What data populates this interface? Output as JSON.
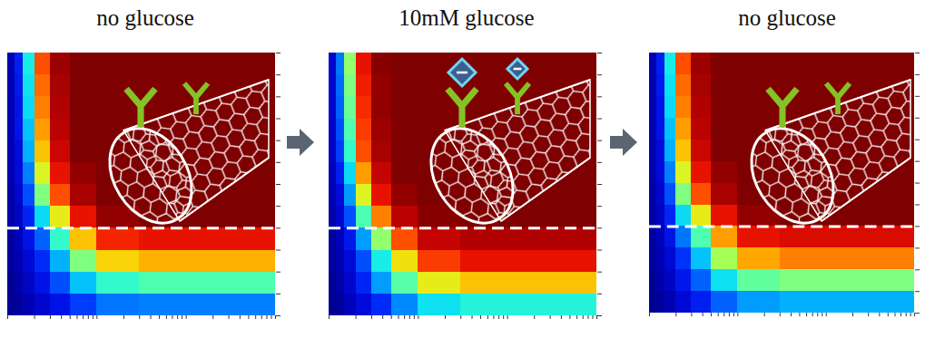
{
  "chart_data": [
    {
      "type": "heatmap",
      "title": "no glucose",
      "x_bins": [
        1,
        1.2,
        1.5,
        2,
        3,
        5,
        10,
        30,
        100,
        300,
        1000
      ],
      "y_bins": [
        0,
        1,
        2,
        3,
        4,
        5,
        6,
        7,
        8,
        9,
        10,
        11,
        12
      ],
      "cells": [
        [
          0.02,
          0.03,
          0.05,
          0.08,
          0.12,
          0.18,
          0.24,
          0.25,
          0.25,
          0.25
        ],
        [
          0.02,
          0.04,
          0.07,
          0.12,
          0.2,
          0.32,
          0.42,
          0.45,
          0.45,
          0.45
        ],
        [
          0.03,
          0.05,
          0.09,
          0.16,
          0.3,
          0.5,
          0.66,
          0.7,
          0.7,
          0.7
        ],
        [
          0.03,
          0.06,
          0.12,
          0.22,
          0.42,
          0.68,
          0.85,
          0.88,
          0.88,
          0.88
        ],
        [
          0.04,
          0.07,
          0.15,
          0.35,
          0.62,
          0.88,
          0.98,
          1,
          1,
          1
        ],
        [
          0.04,
          0.08,
          0.2,
          0.5,
          0.8,
          0.96,
          1,
          1,
          1,
          1
        ],
        [
          0.05,
          0.1,
          0.25,
          0.6,
          0.88,
          0.98,
          1,
          1,
          1,
          1
        ],
        [
          0.05,
          0.1,
          0.3,
          0.68,
          0.92,
          1,
          1,
          1,
          1,
          1
        ],
        [
          0.05,
          0.12,
          0.32,
          0.72,
          0.94,
          1,
          1,
          1,
          1,
          1
        ],
        [
          0.05,
          0.12,
          0.35,
          0.75,
          0.95,
          1,
          1,
          1,
          1,
          1
        ],
        [
          0.05,
          0.13,
          0.36,
          0.77,
          0.96,
          1,
          1,
          1,
          1,
          1
        ],
        [
          0.05,
          0.14,
          0.38,
          0.8,
          0.97,
          1,
          1,
          1,
          1,
          1
        ]
      ],
      "zlim": [
        0,
        1
      ],
      "xlim": [
        1,
        1000
      ],
      "ylim": [
        0,
        12
      ],
      "xticks": [
        1,
        2,
        3,
        4,
        5,
        6,
        7,
        8,
        9,
        10,
        20,
        30,
        40,
        50,
        60,
        70,
        80,
        90,
        100,
        200,
        300,
        400,
        500,
        600,
        700,
        800,
        900,
        1000
      ],
      "yticks": [
        0,
        1,
        2,
        3,
        4,
        5,
        6,
        7,
        8,
        9,
        10,
        11,
        12
      ],
      "log": "x",
      "tick_labels": false,
      "reference_line": 4,
      "line_style": "dashed"
    },
    {
      "type": "heatmap",
      "title": "10mM glucose",
      "x_bins": [
        1,
        1.2,
        1.5,
        2,
        3,
        5,
        10,
        30,
        100,
        300,
        1000
      ],
      "y_bins": [
        0,
        1,
        2,
        3,
        4,
        5,
        6,
        7,
        8,
        9,
        10,
        11,
        12
      ],
      "cells": [
        [
          0.02,
          0.03,
          0.06,
          0.1,
          0.16,
          0.26,
          0.36,
          0.4,
          0.4,
          0.4
        ],
        [
          0.02,
          0.04,
          0.08,
          0.15,
          0.28,
          0.46,
          0.62,
          0.68,
          0.68,
          0.68
        ],
        [
          0.03,
          0.05,
          0.1,
          0.2,
          0.38,
          0.64,
          0.82,
          0.88,
          0.88,
          0.88
        ],
        [
          0.03,
          0.06,
          0.13,
          0.28,
          0.52,
          0.8,
          0.93,
          0.95,
          0.95,
          0.95
        ],
        [
          0.04,
          0.08,
          0.2,
          0.45,
          0.75,
          0.94,
          0.99,
          1,
          1,
          1
        ],
        [
          0.05,
          0.1,
          0.28,
          0.6,
          0.88,
          0.98,
          1,
          1,
          1,
          1
        ],
        [
          0.06,
          0.14,
          0.35,
          0.72,
          0.93,
          1,
          1,
          1,
          1,
          1
        ],
        [
          0.07,
          0.18,
          0.42,
          0.8,
          0.96,
          1,
          1,
          1,
          1,
          1
        ],
        [
          0.07,
          0.2,
          0.45,
          0.82,
          0.97,
          1,
          1,
          1,
          1,
          1
        ],
        [
          0.08,
          0.22,
          0.48,
          0.84,
          0.98,
          1,
          1,
          1,
          1,
          1
        ],
        [
          0.08,
          0.23,
          0.5,
          0.86,
          0.98,
          1,
          1,
          1,
          1,
          1
        ],
        [
          0.08,
          0.24,
          0.52,
          0.88,
          0.99,
          1,
          1,
          1,
          1,
          1
        ]
      ],
      "zlim": [
        0,
        1
      ],
      "xlim": [
        1,
        1000
      ],
      "ylim": [
        0,
        12
      ],
      "xticks": [
        1,
        2,
        3,
        4,
        5,
        6,
        7,
        8,
        9,
        10,
        20,
        30,
        40,
        50,
        60,
        70,
        80,
        90,
        100,
        200,
        300,
        400,
        500,
        600,
        700,
        800,
        900,
        1000
      ],
      "yticks": [
        0,
        1,
        2,
        3,
        4,
        5,
        6,
        7,
        8,
        9,
        10,
        11,
        12
      ],
      "log": "x",
      "tick_labels": false,
      "reference_line": 4,
      "line_style": "dashed"
    },
    {
      "type": "heatmap",
      "title": "no glucose",
      "x_bins": [
        1,
        1.2,
        1.5,
        2,
        3,
        5,
        10,
        30,
        100,
        300,
        1000
      ],
      "y_bins": [
        0,
        1,
        2,
        3,
        4,
        5,
        6,
        7,
        8,
        9,
        10,
        11,
        12
      ],
      "cells": [
        [
          0.02,
          0.03,
          0.05,
          0.09,
          0.14,
          0.22,
          0.28,
          0.3,
          0.3,
          0.3
        ],
        [
          0.02,
          0.04,
          0.07,
          0.13,
          0.22,
          0.36,
          0.47,
          0.5,
          0.5,
          0.5
        ],
        [
          0.03,
          0.05,
          0.09,
          0.17,
          0.32,
          0.54,
          0.71,
          0.75,
          0.75,
          0.75
        ],
        [
          0.03,
          0.06,
          0.12,
          0.24,
          0.45,
          0.72,
          0.88,
          0.9,
          0.9,
          0.9
        ],
        [
          0.04,
          0.07,
          0.15,
          0.35,
          0.62,
          0.88,
          0.98,
          1,
          1,
          1
        ],
        [
          0.04,
          0.08,
          0.2,
          0.5,
          0.8,
          0.96,
          1,
          1,
          1,
          1
        ],
        [
          0.05,
          0.1,
          0.25,
          0.6,
          0.88,
          0.98,
          1,
          1,
          1,
          1
        ],
        [
          0.05,
          0.1,
          0.3,
          0.68,
          0.92,
          1,
          1,
          1,
          1,
          1
        ],
        [
          0.05,
          0.12,
          0.32,
          0.72,
          0.94,
          1,
          1,
          1,
          1,
          1
        ],
        [
          0.05,
          0.12,
          0.35,
          0.75,
          0.95,
          1,
          1,
          1,
          1,
          1
        ],
        [
          0.05,
          0.13,
          0.36,
          0.77,
          0.96,
          1,
          1,
          1,
          1,
          1
        ],
        [
          0.05,
          0.14,
          0.38,
          0.8,
          0.97,
          1,
          1,
          1,
          1,
          1
        ]
      ],
      "zlim": [
        0,
        1
      ],
      "xlim": [
        1,
        1000
      ],
      "ylim": [
        0,
        12
      ],
      "xticks": [
        1,
        2,
        3,
        4,
        5,
        6,
        7,
        8,
        9,
        10,
        20,
        30,
        40,
        50,
        60,
        70,
        80,
        90,
        100,
        200,
        300,
        400,
        500,
        600,
        700,
        800,
        900,
        1000
      ],
      "yticks": [
        0,
        1,
        2,
        3,
        4,
        5,
        6,
        7,
        8,
        9,
        10,
        11,
        12
      ],
      "log": "x",
      "tick_labels": false,
      "reference_line": 4,
      "line_style": "dashed"
    }
  ]
}
